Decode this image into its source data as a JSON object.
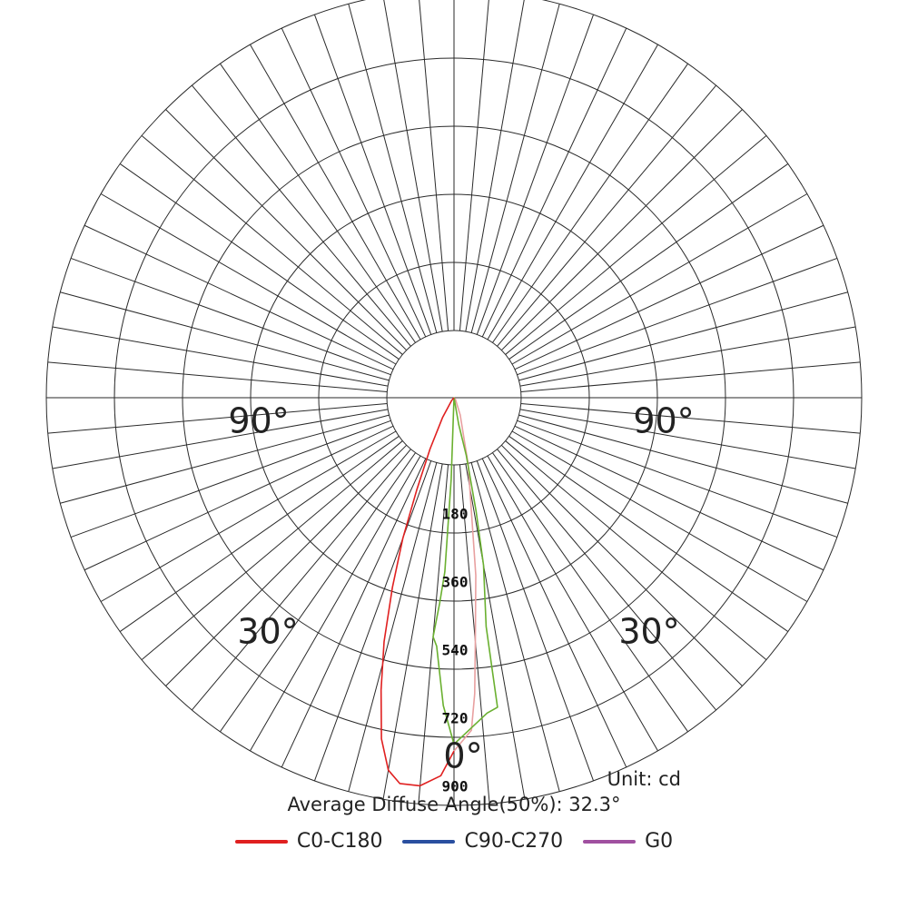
{
  "chart_data": {
    "type": "polar-line",
    "unit_label": "Unit: cd",
    "average_diffuse_angle_text": "Average Diffuse Angle(50%): 32.3°",
    "radial_ticks": [
      180,
      360,
      540,
      720,
      900
    ],
    "radial_max": 900,
    "angle_step_deg": 5,
    "angle_labels": [
      {
        "text": "0°",
        "angle": 0
      },
      {
        "text": "30°",
        "angle": -30
      },
      {
        "text": "30°",
        "angle": 30
      },
      {
        "text": "90°",
        "angle": -90
      },
      {
        "text": "90°",
        "angle": 90
      }
    ],
    "legend": [
      {
        "name": "C0-C180",
        "color": "#e02020"
      },
      {
        "name": "C90-C270",
        "color": "#2a4fa0"
      },
      {
        "name": "G0",
        "color": "#a050a0"
      }
    ],
    "series": [
      {
        "name": "C0-C180",
        "color": "#e02020",
        "points": [
          {
            "angle": 0,
            "value": 780
          },
          {
            "angle": -2,
            "value": 835
          },
          {
            "angle": -5,
            "value": 860
          },
          {
            "angle": -8,
            "value": 860
          },
          {
            "angle": -10,
            "value": 835
          },
          {
            "angle": -12,
            "value": 770
          },
          {
            "angle": -14,
            "value": 665
          },
          {
            "angle": -16,
            "value": 560
          },
          {
            "angle": -18,
            "value": 440
          },
          {
            "angle": -20,
            "value": 330
          },
          {
            "angle": -22,
            "value": 220
          },
          {
            "angle": -25,
            "value": 125
          },
          {
            "angle": -30,
            "value": 50
          },
          {
            "angle": -40,
            "value": 8
          },
          {
            "angle": -90,
            "value": 0
          }
        ]
      },
      {
        "name": "C90-C270",
        "color": "#e8a0a0",
        "points": [
          {
            "angle": 0,
            "value": 780
          },
          {
            "angle": 3,
            "value": 735
          },
          {
            "angle": 4,
            "value": 655
          },
          {
            "angle": 5,
            "value": 540
          },
          {
            "angle": 7,
            "value": 395
          },
          {
            "angle": 9,
            "value": 240
          },
          {
            "angle": 12,
            "value": 150
          },
          {
            "angle": 20,
            "value": 40
          },
          {
            "angle": 40,
            "value": 5
          },
          {
            "angle": 90,
            "value": 0
          }
        ]
      },
      {
        "name": "G0",
        "color": "#6ab030",
        "points": [
          {
            "angle": 0,
            "value": 765
          },
          {
            "angle": -2,
            "value": 680
          },
          {
            "angle": -4,
            "value": 550
          },
          {
            "angle": -5,
            "value": 530
          },
          {
            "angle": -4,
            "value": 455
          },
          {
            "angle": -3,
            "value": 385
          },
          {
            "angle": -2,
            "value": 180
          },
          {
            "angle": -1,
            "value": 0
          },
          {
            "angle": 10,
            "value": 60
          },
          {
            "angle": 12,
            "value": 130
          },
          {
            "angle": 11,
            "value": 255
          },
          {
            "angle": 10,
            "value": 375
          },
          {
            "angle": 8,
            "value": 510
          },
          {
            "angle": 8,
            "value": 690
          },
          {
            "angle": 6,
            "value": 700
          },
          {
            "angle": 0,
            "value": 765
          }
        ]
      }
    ]
  }
}
